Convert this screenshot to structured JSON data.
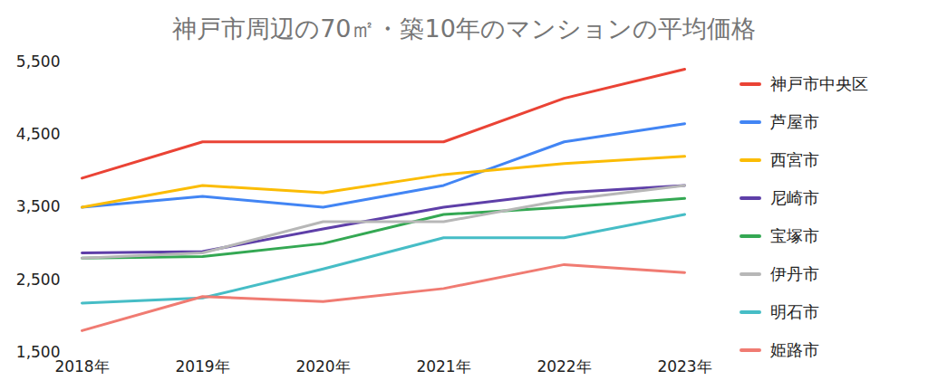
{
  "chart_data": {
    "type": "line",
    "title": "神戸市周辺の70㎡・築10年のマンションの平均価格",
    "categories": [
      "2018年",
      "2019年",
      "2020年",
      "2021年",
      "2022年",
      "2023年"
    ],
    "series": [
      {
        "name": "神戸市中央区",
        "color": "#ea4335",
        "values": [
          3900,
          4400,
          4400,
          4400,
          5000,
          5400
        ]
      },
      {
        "name": "芦屋市",
        "color": "#4285f4",
        "values": [
          3500,
          3650,
          3500,
          3800,
          4400,
          4650
        ]
      },
      {
        "name": "西宮市",
        "color": "#fbbc04",
        "values": [
          3500,
          3800,
          3700,
          3950,
          4100,
          4200
        ]
      },
      {
        "name": "尼崎市",
        "color": "#5e3fa8",
        "values": [
          2870,
          2890,
          3200,
          3500,
          3700,
          3800
        ]
      },
      {
        "name": "宝塚市",
        "color": "#34a853",
        "values": [
          2800,
          2820,
          3000,
          3400,
          3500,
          3620
        ]
      },
      {
        "name": "伊丹市",
        "color": "#b7b7b7",
        "values": [
          2800,
          2870,
          3300,
          3300,
          3600,
          3800
        ]
      },
      {
        "name": "明石市",
        "color": "#46bdc6",
        "values": [
          2180,
          2250,
          2650,
          3080,
          3080,
          3400
        ]
      },
      {
        "name": "姫路市",
        "color": "#f07b72",
        "values": [
          1800,
          2270,
          2200,
          2380,
          2710,
          2600
        ]
      }
    ],
    "ylim": [
      1500,
      5500
    ],
    "yticks": [
      {
        "value": 1500,
        "label": "1,500"
      },
      {
        "value": 2500,
        "label": "2,500"
      },
      {
        "value": 3500,
        "label": "3,500"
      },
      {
        "value": 4500,
        "label": "4,500"
      },
      {
        "value": 5500,
        "label": "5,500"
      }
    ],
    "grid": false,
    "legend": "right"
  }
}
